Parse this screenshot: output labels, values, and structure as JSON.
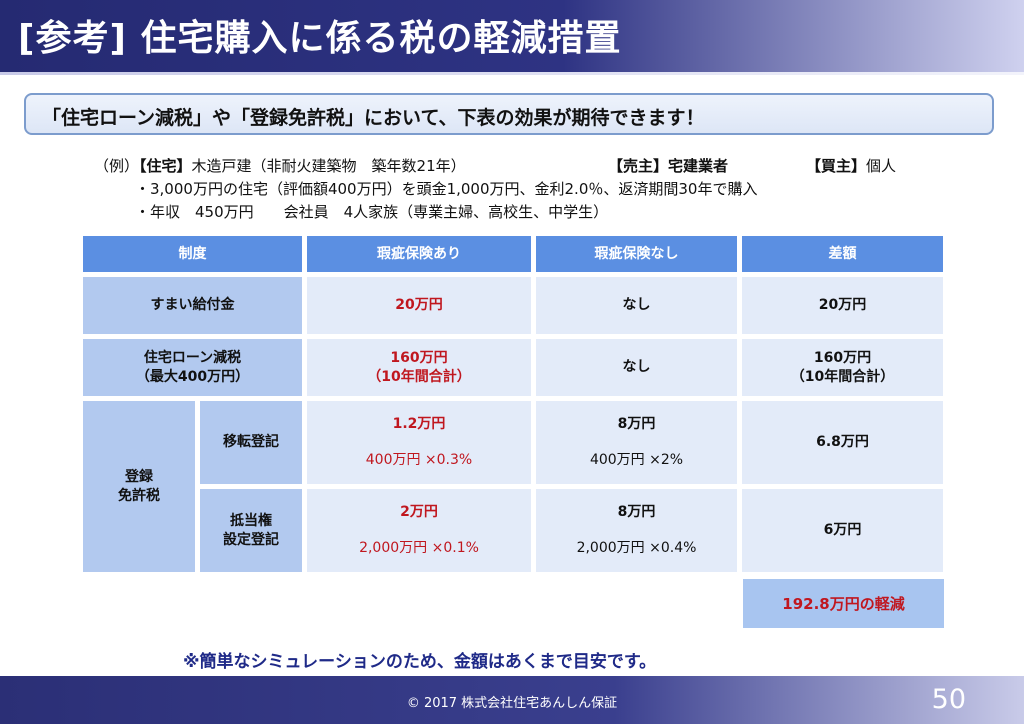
{
  "header": {
    "title": "[参考] 住宅購入に係る税の軽減措置"
  },
  "callout": {
    "text": "「住宅ローン減税」や「登録免許税」において、下表の効果が期待できます！"
  },
  "example": {
    "prefix": "（例）",
    "house_label": "【住宅】",
    "house_value": "木造戸建（非耐火建築物　築年数21年）",
    "seller_label": "【売主】",
    "seller_value": "宅建業者",
    "buyer_label": "【買主】",
    "buyer_value": "個人",
    "line2": "・3,000万円の住宅（評価額400万円）を頭金1,000万円、金利2.0％、返済期間30年で購入",
    "line3": "・年収　450万円　　会社員　4人家族（専業主婦、高校生、中学生）"
  },
  "table": {
    "headers": [
      "制度",
      "瑕疵保険あり",
      "瑕疵保険なし",
      "差額"
    ],
    "sumai": {
      "label": "すまい給付金",
      "with": "20万円",
      "without": "なし",
      "diff": "20万円"
    },
    "loan": {
      "label_1": "住宅ローン減税",
      "label_2": "（最大400万円）",
      "with_1": "160万円",
      "with_2": "（10年間合計）",
      "without": "なし",
      "diff_1": "160万円",
      "diff_2": "（10年間合計）"
    },
    "registration": {
      "label_1": "登録",
      "label_2": "免許税",
      "transfer": {
        "label": "移転登記",
        "with_amount": "1.2万円",
        "with_calc": "400万円 ×0.3%",
        "without_amount": "8万円",
        "without_calc": "400万円 ×2%",
        "diff": "6.8万円"
      },
      "mortgage": {
        "label_1": "抵当権",
        "label_2": "設定登記",
        "with_amount": "2万円",
        "with_calc": "2,000万円 ×0.1%",
        "without_amount": "8万円",
        "without_calc": "2,000万円 ×0.4%",
        "diff": "6万円"
      }
    },
    "total": "192.8万円の軽減"
  },
  "note": "※簡単なシミュレーションのため、金額はあくまで目安です。",
  "footer": {
    "copyright": "© 2017 株式会社住宅あんしん保証",
    "page": "50"
  },
  "colors": {
    "header_bg": "#2e3383",
    "table_header": "#5b8fe2",
    "label_cell": "#b2c9ef",
    "data_cell": "#e3ebf9",
    "highlight_red": "#c0171f",
    "note_blue": "#1f2a88",
    "total_bg": "#a8c5f0"
  }
}
